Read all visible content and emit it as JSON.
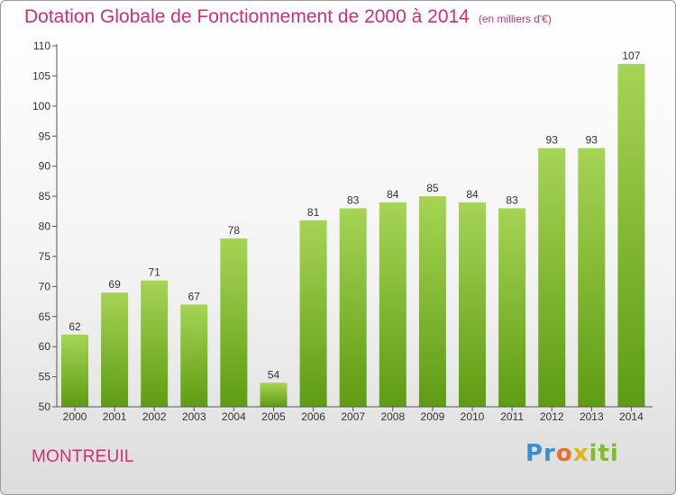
{
  "header": {
    "title": "Dotation Globale de Fonctionnement de 2000 à 2014",
    "subtitle": "(en milliers d'€)"
  },
  "footer": {
    "commune": "MONTREUIL",
    "logo": [
      "Pr",
      "o",
      "x",
      "iti"
    ]
  },
  "colors": {
    "title": "#c8326f",
    "bar_top": "#a6d455",
    "bar_bottom": "#5e9c12",
    "axis": "#555555"
  },
  "chart_data": {
    "type": "bar",
    "categories": [
      "2000",
      "2001",
      "2002",
      "2003",
      "2004",
      "2005",
      "2006",
      "2007",
      "2008",
      "2009",
      "2010",
      "2011",
      "2012",
      "2013",
      "2014"
    ],
    "values": [
      62,
      69,
      71,
      67,
      78,
      54,
      81,
      83,
      84,
      85,
      84,
      83,
      93,
      93,
      107
    ],
    "title": "Dotation Globale de Fonctionnement de 2000 à 2014",
    "xlabel": "",
    "ylabel": "",
    "ylim": [
      50,
      110
    ],
    "yticks": [
      50,
      55,
      60,
      65,
      70,
      75,
      80,
      85,
      90,
      95,
      100,
      105,
      110
    ],
    "grid": false,
    "data_labels": true
  }
}
